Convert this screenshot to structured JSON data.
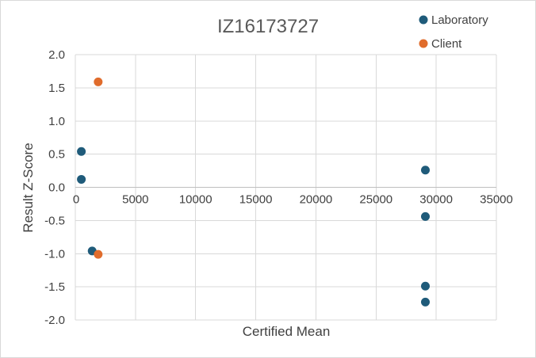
{
  "chart_data": {
    "type": "scatter",
    "title": "IZ16173727",
    "xlabel": "Certified Mean",
    "ylabel": "Result Z-Score",
    "xlim": [
      0,
      35000
    ],
    "ylim": [
      -2.0,
      2.0
    ],
    "x_ticks": [
      "0",
      "5000",
      "10000",
      "15000",
      "20000",
      "25000",
      "30000",
      "35000"
    ],
    "y_ticks": [
      "2.0",
      "1.5",
      "1.0",
      "0.5",
      "0.0",
      "-0.5",
      "-1.0",
      "-1.5",
      "-2.0"
    ],
    "grid": true,
    "legend_position": "top-right",
    "series": [
      {
        "name": "Laboratory",
        "color": "#1f5b7a",
        "points": [
          {
            "x": 500,
            "y": 0.54
          },
          {
            "x": 500,
            "y": 0.12
          },
          {
            "x": 1400,
            "y": -0.96
          },
          {
            "x": 29100,
            "y": 0.26
          },
          {
            "x": 29100,
            "y": -0.44
          },
          {
            "x": 29100,
            "y": -1.49
          },
          {
            "x": 29100,
            "y": -1.73
          }
        ]
      },
      {
        "name": "Client",
        "color": "#e06c2c",
        "points": [
          {
            "x": 1900,
            "y": 1.59
          },
          {
            "x": 1900,
            "y": -1.01
          }
        ]
      }
    ]
  }
}
